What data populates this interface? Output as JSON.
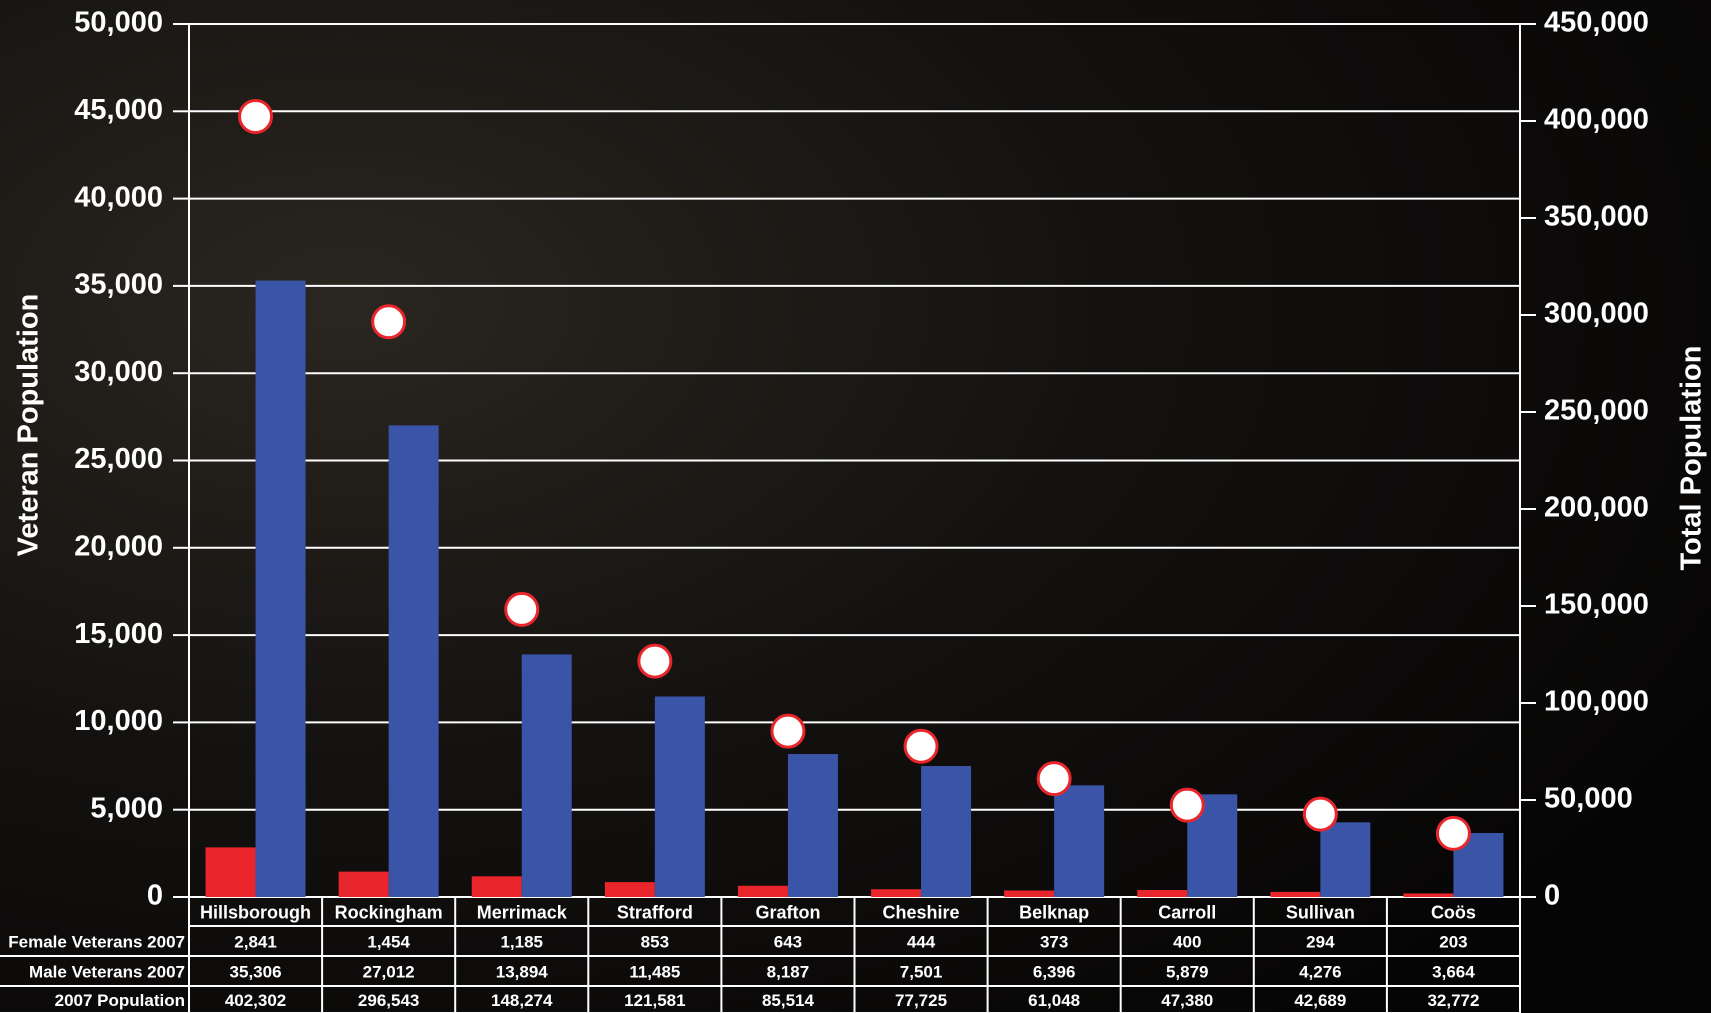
{
  "chart_data": {
    "type": "bar",
    "ylabel": "Veteran Population",
    "y2label": "Total Population",
    "categories": [
      "Hillsborough",
      "Rockingham",
      "Merrimack",
      "Strafford",
      "Grafton",
      "Cheshire",
      "Belknap",
      "Carroll",
      "Sullivan",
      "Coös"
    ],
    "series": [
      {
        "name": "Female Veterans 2007",
        "color": "#e8262b",
        "values": [
          2841,
          1454,
          1185,
          853,
          643,
          444,
          373,
          400,
          294,
          203
        ],
        "value_labels": [
          "2,841",
          "1,454",
          "1,185",
          "853",
          "643",
          "444",
          "373",
          "400",
          "294",
          "203"
        ]
      },
      {
        "name": "Male Veterans 2007",
        "color": "#3a54a8",
        "values": [
          35306,
          27012,
          13894,
          11485,
          8187,
          7501,
          6396,
          5879,
          4276,
          3664
        ],
        "value_labels": [
          "35,306",
          "27,012",
          "13,894",
          "11,485",
          "8,187",
          "7,501",
          "6,396",
          "5,879",
          "4,276",
          "3,664"
        ]
      },
      {
        "name": "2007 Population",
        "color": "#e8262b",
        "axis": "y2",
        "mark": "circle",
        "values": [
          402302,
          296543,
          148274,
          121581,
          85514,
          77725,
          61048,
          47380,
          42689,
          32772
        ],
        "value_labels": [
          "402,302",
          "296,543",
          "148,274",
          "121,581",
          "85,514",
          "77,725",
          "61,048",
          "47,380",
          "42,689",
          "32,772"
        ]
      }
    ],
    "ylim": [
      0,
      50000
    ],
    "yticks": [
      0,
      {
        "value": 5000,
        "label": "5,000"
      },
      {
        "value": 10000,
        "label": "10,000"
      },
      {
        "value": 15000,
        "label": "15,000"
      },
      {
        "value": 20000,
        "label": "20,000"
      },
      {
        "value": 25000,
        "label": "25,000"
      },
      {
        "value": 30000,
        "label": "30,000"
      },
      {
        "value": 35000,
        "label": "35,000"
      },
      {
        "value": 40000,
        "label": "40,000"
      },
      {
        "value": 45000,
        "label": "45,000"
      },
      {
        "value": 50000,
        "label": "50,000"
      }
    ],
    "y2lim": [
      0,
      450000
    ],
    "y2ticks": [
      0,
      {
        "value": 50000,
        "label": "50,000"
      },
      {
        "value": 100000,
        "label": "100,000"
      },
      {
        "value": 150000,
        "label": "150,000"
      },
      {
        "value": 200000,
        "label": "200,000"
      },
      {
        "value": 250000,
        "label": "250,000"
      },
      {
        "value": 300000,
        "label": "300,000"
      },
      {
        "value": 350000,
        "label": "350,000"
      },
      {
        "value": 400000,
        "label": "400,000"
      },
      {
        "value": 450000,
        "label": "450,000"
      }
    ],
    "grid": true
  }
}
